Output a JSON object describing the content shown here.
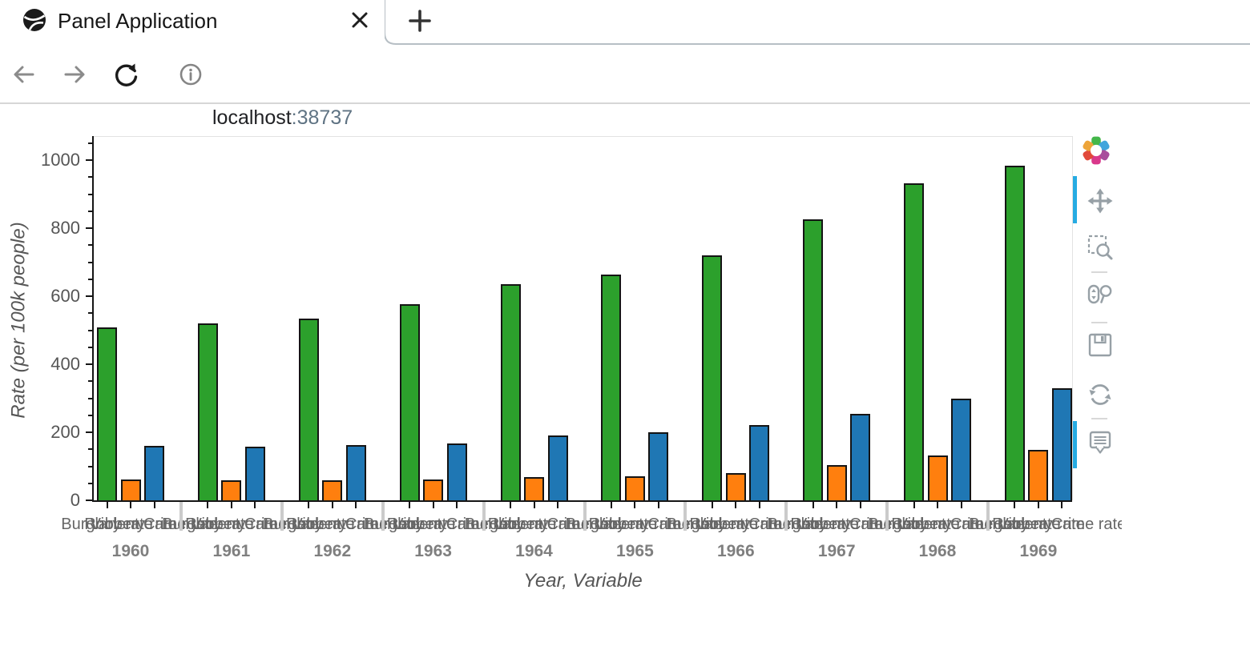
{
  "browser": {
    "tab_title": "Panel Application",
    "close_tab_label": "x",
    "new_tab_label": "+",
    "url_host": "localhost",
    "url_port": ":38737"
  },
  "chart_data": {
    "type": "bar",
    "title": "",
    "xlabel": "Year, Variable",
    "ylabel": "Rate (per 100k people)",
    "ylim": [
      0,
      1070
    ],
    "yticks": [
      0,
      200,
      400,
      600,
      800,
      1000
    ],
    "minor_tick_step": 50,
    "grid": false,
    "legend_position": "none",
    "categories": [
      "1960",
      "1961",
      "1962",
      "1963",
      "1964",
      "1965",
      "1966",
      "1967",
      "1968",
      "1969"
    ],
    "series": [
      {
        "name": "Burglary rate",
        "color": "#2ca02c",
        "values": [
          508.6,
          518.9,
          535.2,
          576.4,
          634.7,
          662.6,
          721.0,
          826.6,
          932.3,
          984.1
        ]
      },
      {
        "name": "Robbery rate",
        "color": "#ff7f0e",
        "values": [
          60.1,
          58.3,
          59.7,
          61.8,
          68.2,
          71.7,
          80.8,
          102.8,
          131.8,
          148.4
        ]
      },
      {
        "name": "Violent Crime rate",
        "color": "#1f77b4",
        "values": [
          160.9,
          158.1,
          162.3,
          168.2,
          190.6,
          200.2,
          220.0,
          253.2,
          298.4,
          328.7
        ]
      }
    ],
    "bar_edge_color": "#141414"
  },
  "toolbar": {
    "tools": [
      "pan",
      "box-zoom",
      "wheel-zoom",
      "save",
      "reset",
      "hover"
    ],
    "active_tools": [
      "pan",
      "hover"
    ],
    "accent_color": "#26abe2"
  }
}
